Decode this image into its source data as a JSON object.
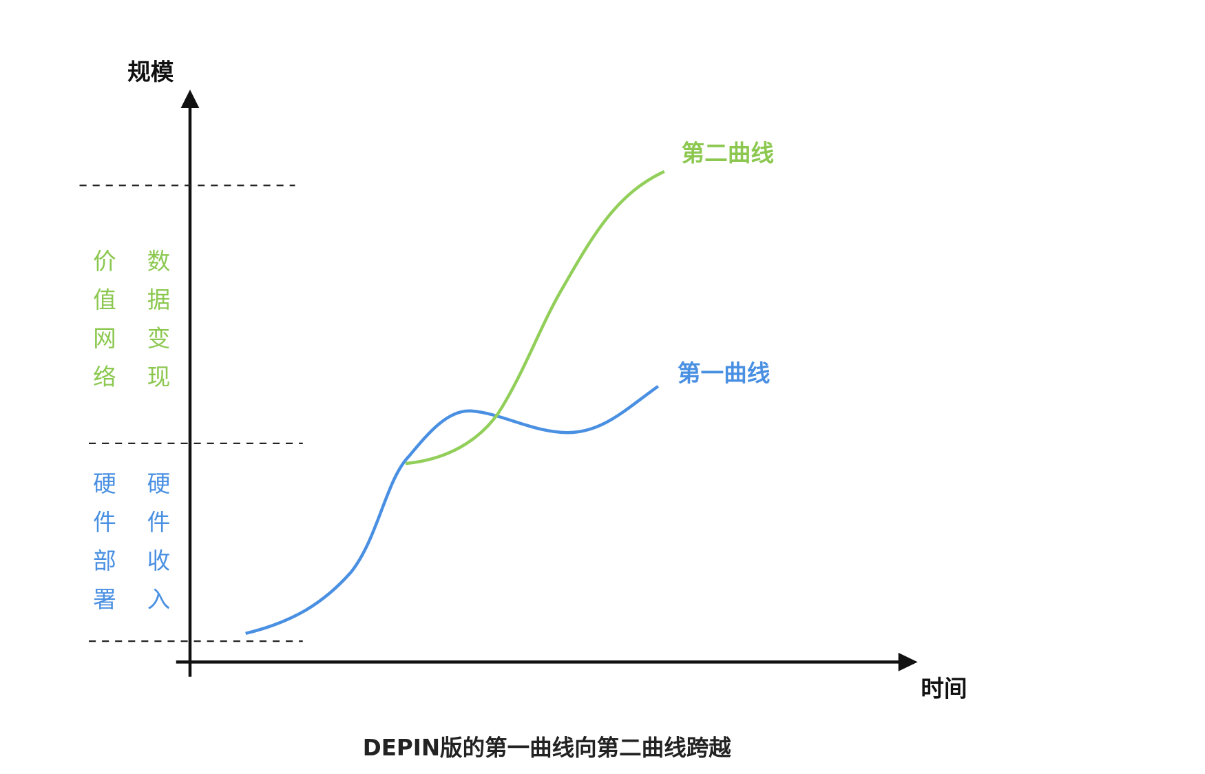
{
  "axes": {
    "y_label": "规模",
    "x_label": "时间"
  },
  "curves": [
    {
      "label": "第二曲线"
    },
    {
      "label": "第一曲线"
    }
  ],
  "zones": [
    {
      "columns": [
        "价值网络",
        "数据变现"
      ]
    },
    {
      "columns": [
        "硬件部署",
        "硬件收入"
      ]
    }
  ],
  "caption": "DEPIN版的第一曲线向第二曲线跨越"
}
